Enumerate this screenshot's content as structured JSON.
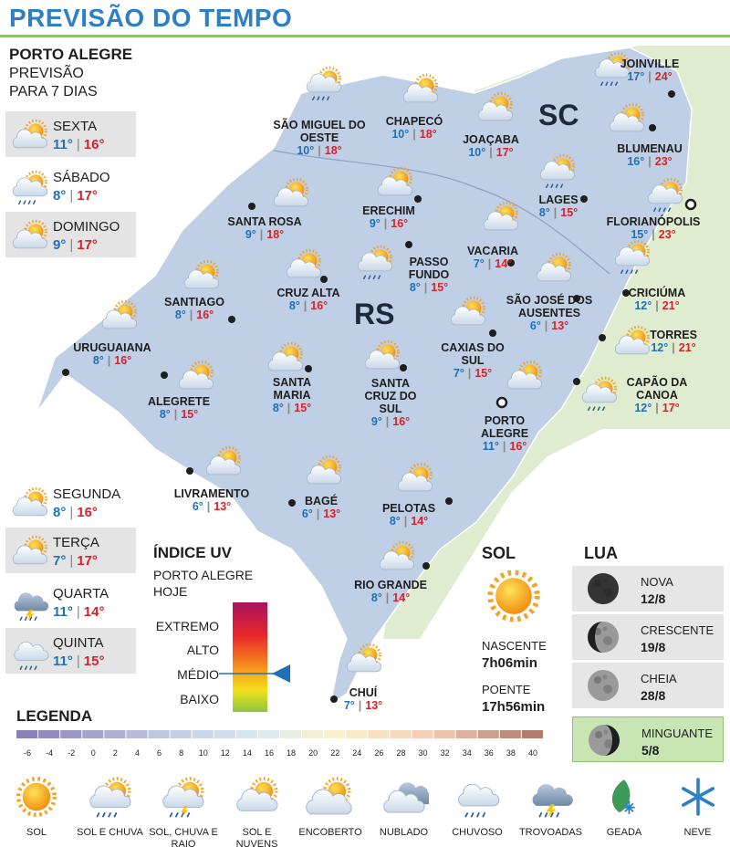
{
  "header": {
    "title": "PREVISÃO DO TEMPO"
  },
  "forecast": {
    "city": "PORTO ALEGRE",
    "subtitle": [
      "PREVISÃO",
      "PARA 7 DIAS"
    ],
    "days": [
      {
        "day": "SEXTA",
        "min": "11°",
        "max": "16°"
      },
      {
        "day": "SÁBADO",
        "min": "8°",
        "max": "17°"
      },
      {
        "day": "DOMINGO",
        "min": "9°",
        "max": "17°"
      },
      {
        "day": "SEGUNDA",
        "min": "8°",
        "max": "16°"
      },
      {
        "day": "TERÇA",
        "min": "7°",
        "max": "17°"
      },
      {
        "day": "QUARTA",
        "min": "11°",
        "max": "14°"
      },
      {
        "day": "QUINTA",
        "min": "11°",
        "max": "15°"
      }
    ]
  },
  "map": {
    "regions": [
      "SC",
      "RS"
    ],
    "cities": [
      {
        "name": "SÃO MIGUEL DO OESTE",
        "min": "10°",
        "max": "18°"
      },
      {
        "name": "CHAPECÓ",
        "min": "10°",
        "max": "18°"
      },
      {
        "name": "JOAÇABA",
        "min": "10°",
        "max": "17°"
      },
      {
        "name": "JOINVILLE",
        "min": "17°",
        "max": "24°"
      },
      {
        "name": "BLUMENAU",
        "min": "16°",
        "max": "23°"
      },
      {
        "name": "LAGES",
        "min": "8°",
        "max": "15°"
      },
      {
        "name": "FLORIANÓPOLIS",
        "min": "15°",
        "max": "23°"
      },
      {
        "name": "SANTA ROSA",
        "min": "9°",
        "max": "18°"
      },
      {
        "name": "ERECHIM",
        "min": "9°",
        "max": "16°"
      },
      {
        "name": "VACARIA",
        "min": "7°",
        "max": "14°"
      },
      {
        "name": "PASSO FUNDO",
        "min": "8°",
        "max": "15°"
      },
      {
        "name": "CRICIÚMA",
        "min": "12°",
        "max": "21°"
      },
      {
        "name": "SÃO JOSÉ DOS AUSENTES",
        "min": "6°",
        "max": "13°"
      },
      {
        "name": "SANTIAGO",
        "min": "8°",
        "max": "16°"
      },
      {
        "name": "CRUZ ALTA",
        "min": "8°",
        "max": "16°"
      },
      {
        "name": "URUGUAIANA",
        "min": "8°",
        "max": "16°"
      },
      {
        "name": "CAXIAS DO SUL",
        "min": "7°",
        "max": "15°"
      },
      {
        "name": "TORRES",
        "min": "12°",
        "max": "21°"
      },
      {
        "name": "ALEGRETE",
        "min": "8°",
        "max": "15°"
      },
      {
        "name": "SANTA MARIA",
        "min": "8°",
        "max": "15°"
      },
      {
        "name": "SANTA CRUZ DO SUL",
        "min": "9°",
        "max": "16°"
      },
      {
        "name": "CAPÃO DA CANOA",
        "min": "12°",
        "max": "17°"
      },
      {
        "name": "PORTO ALEGRE",
        "min": "11°",
        "max": "16°"
      },
      {
        "name": "LIVRAMENTO",
        "min": "6°",
        "max": "13°"
      },
      {
        "name": "BAGÉ",
        "min": "6°",
        "max": "13°"
      },
      {
        "name": "PELOTAS",
        "min": "8°",
        "max": "14°"
      },
      {
        "name": "RIO GRANDE",
        "min": "8°",
        "max": "14°"
      },
      {
        "name": "CHUÍ",
        "min": "7°",
        "max": "13°"
      }
    ]
  },
  "uv": {
    "title": "ÍNDICE UV",
    "place": [
      "PORTO ALEGRE",
      "HOJE"
    ],
    "levels": [
      "EXTREMO",
      "ALTO",
      "MÉDIO",
      "BAIXO"
    ]
  },
  "sun": {
    "title": "SOL",
    "sunrise_label": "NASCENTE",
    "sunrise": "7h06min",
    "sunset_label": "POENTE",
    "sunset": "17h56min"
  },
  "moon": {
    "title": "LUA",
    "phases": [
      {
        "name": "NOVA",
        "date": "12/8"
      },
      {
        "name": "CRESCENTE",
        "date": "19/8"
      },
      {
        "name": "CHEIA",
        "date": "28/8"
      },
      {
        "name": "MINGUANTE",
        "date": "5/8"
      }
    ]
  },
  "legend": {
    "title": "LEGENDA",
    "scale": [
      -6,
      -4,
      -2,
      0,
      2,
      4,
      6,
      8,
      10,
      12,
      14,
      16,
      18,
      20,
      22,
      24,
      26,
      28,
      30,
      32,
      34,
      36,
      38,
      40
    ],
    "icons": [
      "SOL",
      "SOL E CHUVA",
      "SOL, CHUVA E RAIO",
      "SOL E NUVENS",
      "ENCOBERTO",
      "NUBLADO",
      "CHUVOSO",
      "TROVOADAS",
      "GEADA",
      "NEVE"
    ]
  }
}
